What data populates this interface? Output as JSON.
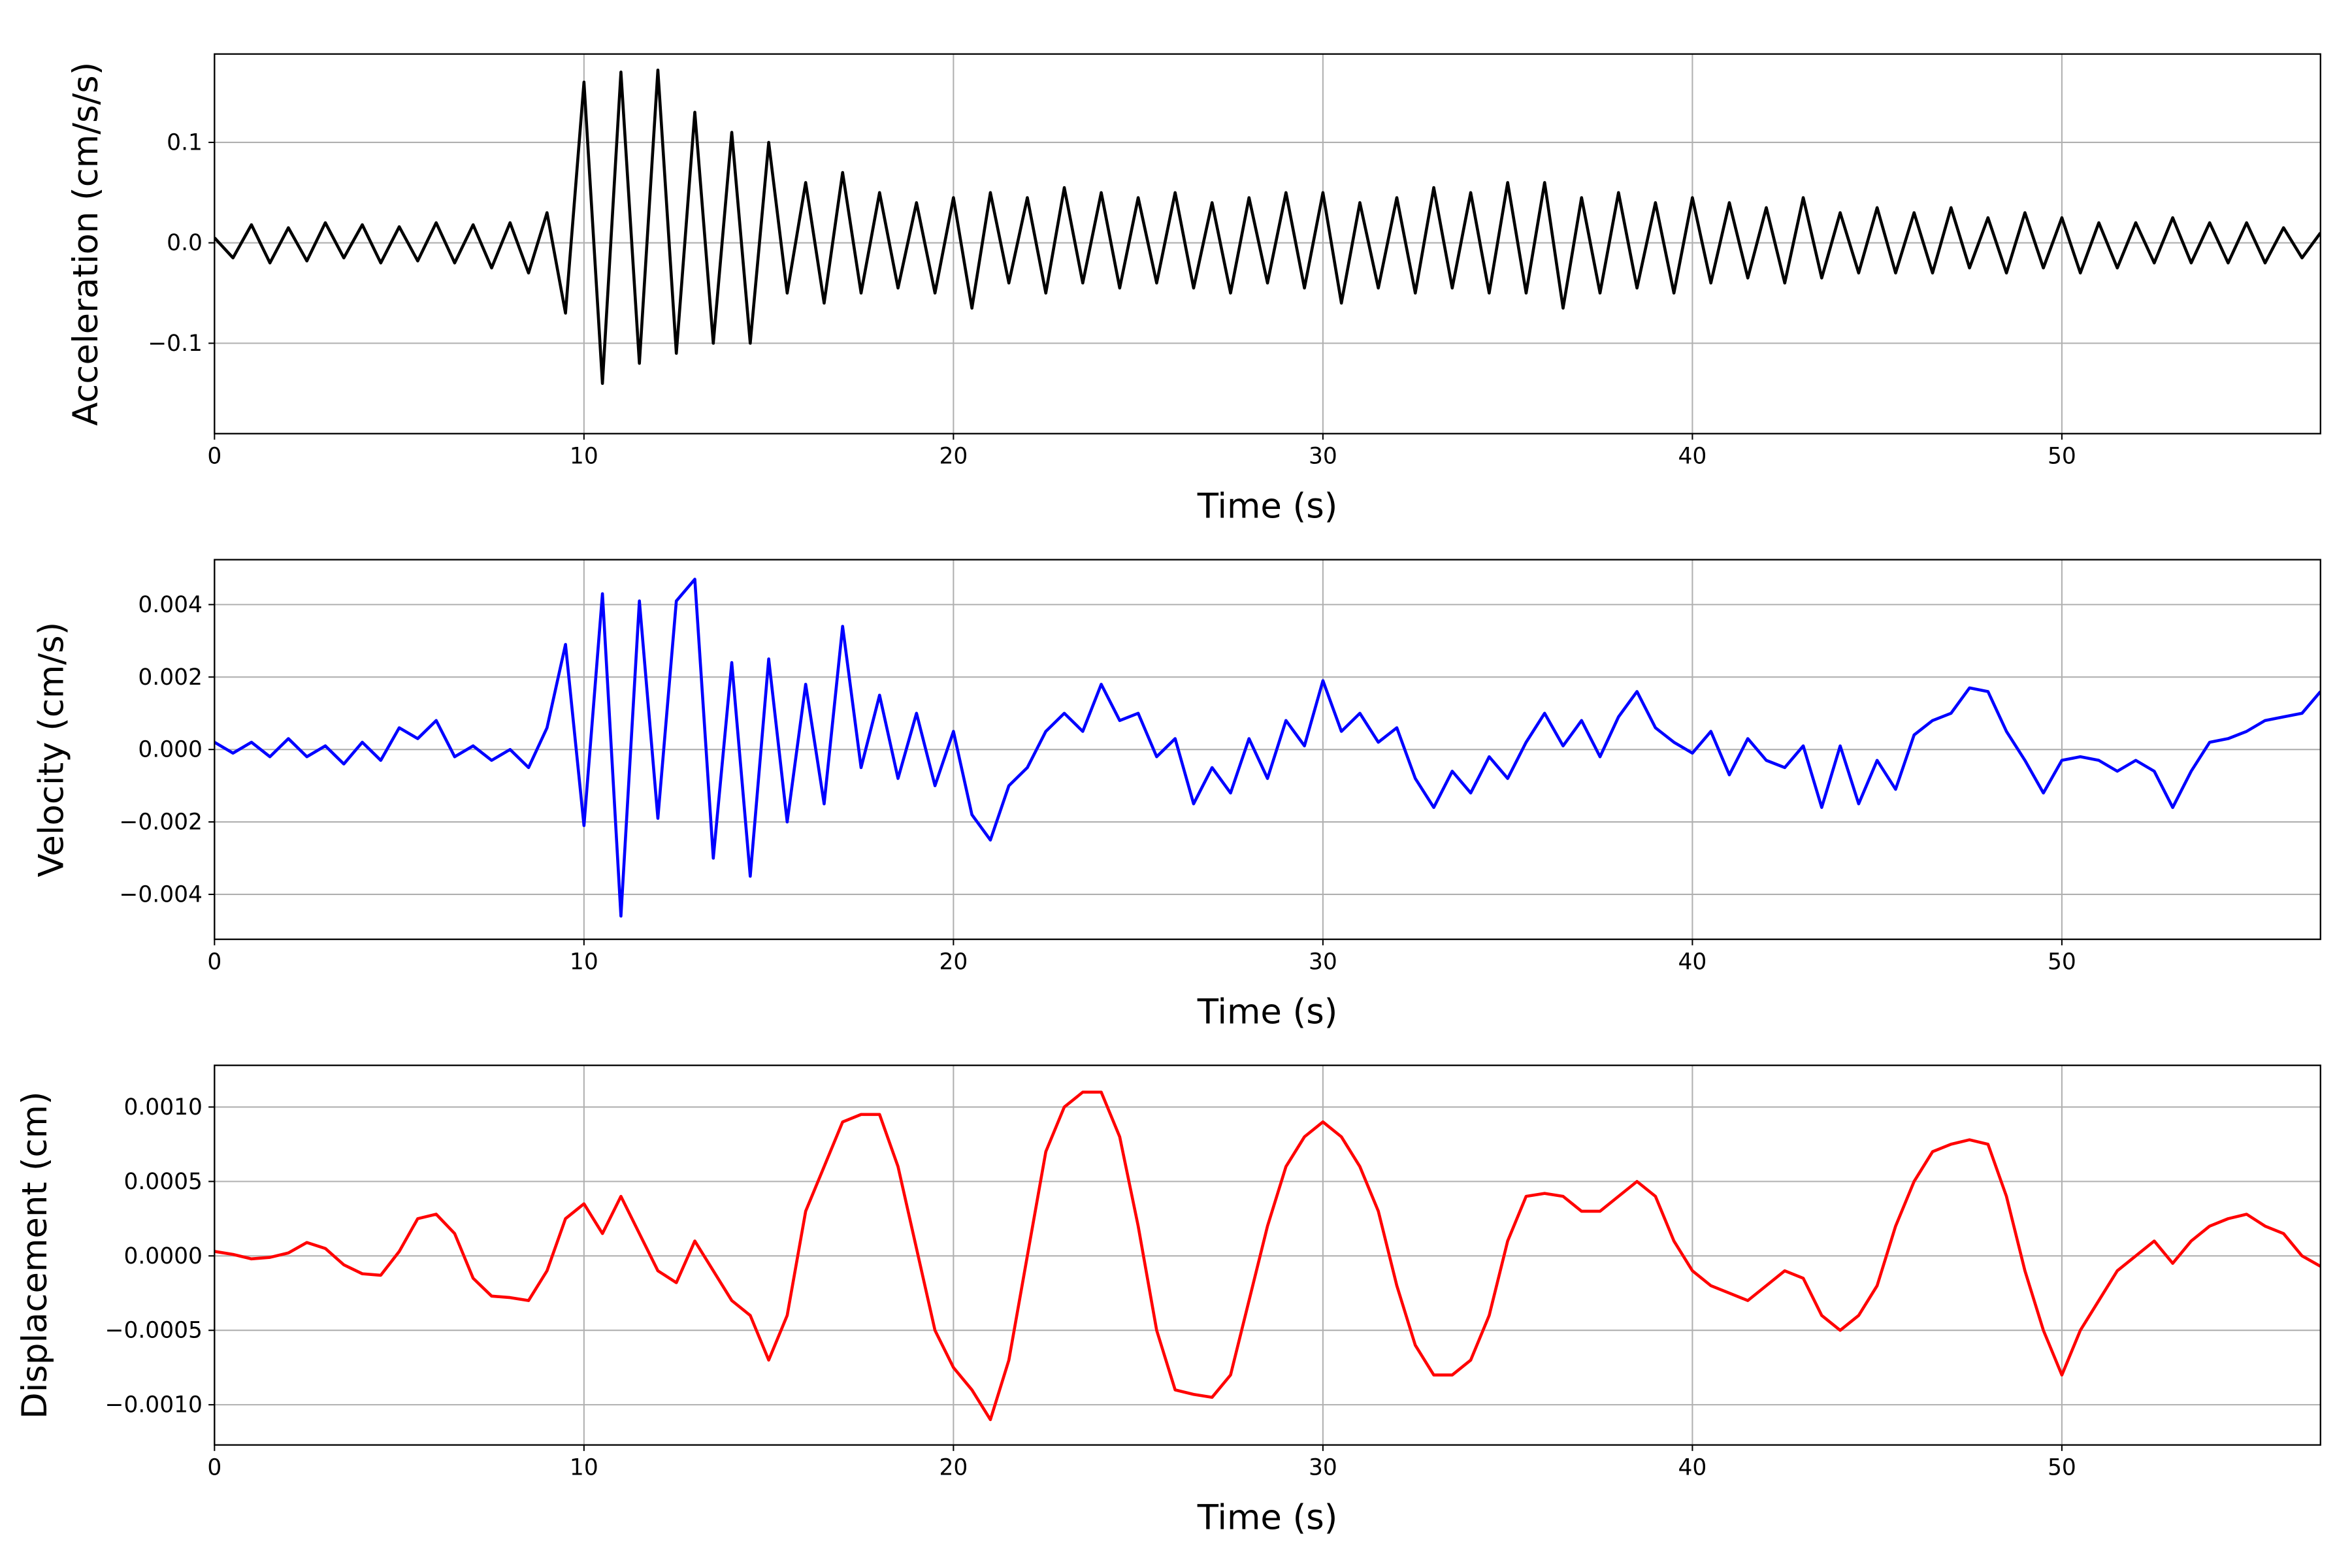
{
  "chart_data": [
    {
      "type": "line",
      "ylabel": "Acceleration (cm/s/s)",
      "xlabel": "Time (s)",
      "color": "#000000",
      "grid": true,
      "xlim": [
        0,
        57
      ],
      "xticks": [
        0,
        10,
        20,
        30,
        40,
        50
      ],
      "ylim": [
        -0.19,
        0.188
      ],
      "yticks": [
        {
          "value": -0.1,
          "label": "−0.1"
        },
        {
          "value": 0,
          "label": "0.0"
        },
        {
          "value": 0.1,
          "label": "0.1"
        }
      ],
      "x": [
        0,
        0.5,
        1,
        1.5,
        2,
        2.5,
        3,
        3.5,
        4,
        4.5,
        5,
        5.5,
        6,
        6.5,
        7,
        7.5,
        8,
        8.5,
        9,
        9.5,
        10,
        10.5,
        11,
        11.5,
        12,
        12.5,
        13,
        13.5,
        14,
        14.5,
        15,
        15.5,
        16,
        16.5,
        17,
        17.5,
        18,
        18.5,
        19,
        19.5,
        20,
        20.5,
        21,
        21.5,
        22,
        22.5,
        23,
        23.5,
        24,
        24.5,
        25,
        25.5,
        26,
        26.5,
        27,
        27.5,
        28,
        28.5,
        29,
        29.5,
        30,
        30.5,
        31,
        31.5,
        32,
        32.5,
        33,
        33.5,
        34,
        34.5,
        35,
        35.5,
        36,
        36.5,
        37,
        37.5,
        38,
        38.5,
        39,
        39.5,
        40,
        40.5,
        41,
        41.5,
        42,
        42.5,
        43,
        43.5,
        44,
        44.5,
        45,
        45.5,
        46,
        46.5,
        47,
        47.5,
        48,
        48.5,
        49,
        49.5,
        50,
        50.5,
        51,
        51.5,
        52,
        52.5,
        53,
        53.5,
        54,
        54.5,
        55,
        55.5,
        56,
        56.5,
        57
      ],
      "values": [
        0.005,
        -0.015,
        0.018,
        -0.02,
        0.015,
        -0.018,
        0.02,
        -0.015,
        0.018,
        -0.02,
        0.016,
        -0.018,
        0.02,
        -0.02,
        0.018,
        -0.025,
        0.02,
        -0.03,
        0.03,
        -0.07,
        0.16,
        -0.14,
        0.17,
        -0.12,
        0.172,
        -0.11,
        0.13,
        -0.1,
        0.11,
        -0.1,
        0.1,
        -0.05,
        0.06,
        -0.06,
        0.07,
        -0.05,
        0.05,
        -0.045,
        0.04,
        -0.05,
        0.045,
        -0.065,
        0.05,
        -0.04,
        0.045,
        -0.05,
        0.055,
        -0.04,
        0.05,
        -0.045,
        0.045,
        -0.04,
        0.05,
        -0.045,
        0.04,
        -0.05,
        0.045,
        -0.04,
        0.05,
        -0.045,
        0.05,
        -0.06,
        0.04,
        -0.045,
        0.045,
        -0.05,
        0.055,
        -0.045,
        0.05,
        -0.05,
        0.06,
        -0.05,
        0.06,
        -0.065,
        0.045,
        -0.05,
        0.05,
        -0.045,
        0.04,
        -0.05,
        0.045,
        -0.04,
        0.04,
        -0.035,
        0.035,
        -0.04,
        0.045,
        -0.035,
        0.03,
        -0.03,
        0.035,
        -0.03,
        0.03,
        -0.03,
        0.035,
        -0.025,
        0.025,
        -0.03,
        0.03,
        -0.025,
        0.025,
        -0.03,
        0.02,
        -0.025,
        0.02,
        -0.02,
        0.025,
        -0.02,
        0.02,
        -0.02,
        0.02,
        -0.02,
        0.015,
        -0.015,
        0.01
      ]
    },
    {
      "type": "line",
      "ylabel": "Velocity (cm/s)",
      "xlabel": "Time (s)",
      "color": "#0000ff",
      "grid": true,
      "xlim": [
        0,
        57
      ],
      "xticks": [
        0,
        10,
        20,
        30,
        40,
        50
      ],
      "ylim": [
        -0.00524,
        0.00524
      ],
      "yticks": [
        {
          "value": -0.004,
          "label": "−0.004"
        },
        {
          "value": -0.002,
          "label": "−0.002"
        },
        {
          "value": 0,
          "label": "0.000"
        },
        {
          "value": 0.002,
          "label": "0.002"
        },
        {
          "value": 0.004,
          "label": "0.004"
        }
      ],
      "x": [
        0,
        0.5,
        1,
        1.5,
        2,
        2.5,
        3,
        3.5,
        4,
        4.5,
        5,
        5.5,
        6,
        6.5,
        7,
        7.5,
        8,
        8.5,
        9,
        9.5,
        10,
        10.5,
        11,
        11.5,
        12,
        12.5,
        13,
        13.5,
        14,
        14.5,
        15,
        15.5,
        16,
        16.5,
        17,
        17.5,
        18,
        18.5,
        19,
        19.5,
        20,
        20.5,
        21,
        21.5,
        22,
        22.5,
        23,
        23.5,
        24,
        24.5,
        25,
        25.5,
        26,
        26.5,
        27,
        27.5,
        28,
        28.5,
        29,
        29.5,
        30,
        30.5,
        31,
        31.5,
        32,
        32.5,
        33,
        33.5,
        34,
        34.5,
        35,
        35.5,
        36,
        36.5,
        37,
        37.5,
        38,
        38.5,
        39,
        39.5,
        40,
        40.5,
        41,
        41.5,
        42,
        42.5,
        43,
        43.5,
        44,
        44.5,
        45,
        45.5,
        46,
        46.5,
        47,
        47.5,
        48,
        48.5,
        49,
        49.5,
        50,
        50.5,
        51,
        51.5,
        52,
        52.5,
        53,
        53.5,
        54,
        54.5,
        55,
        55.5,
        56,
        56.5,
        57
      ],
      "values": [
        0.0002,
        -0.0001,
        0.0002,
        -0.0002,
        0.0003,
        -0.0002,
        0.0001,
        -0.0004,
        0.0002,
        -0.0003,
        0.0006,
        0.0003,
        0.0008,
        -0.0002,
        0.0001,
        -0.0003,
        0.0,
        -0.0005,
        0.0006,
        0.0029,
        -0.0021,
        0.0043,
        -0.0046,
        0.0041,
        -0.0019,
        0.0041,
        0.0047,
        -0.003,
        0.0024,
        -0.0035,
        0.0025,
        -0.002,
        0.0018,
        -0.0015,
        0.0034,
        -0.0005,
        0.0015,
        -0.0008,
        0.001,
        -0.001,
        0.0005,
        -0.0018,
        -0.0025,
        -0.001,
        -0.0005,
        0.0005,
        0.001,
        0.0005,
        0.0018,
        0.0008,
        0.001,
        -0.0002,
        0.0003,
        -0.0015,
        -0.0005,
        -0.0012,
        0.0003,
        -0.0008,
        0.0008,
        0.0001,
        0.0019,
        0.0005,
        0.001,
        0.0002,
        0.0006,
        -0.0008,
        -0.0016,
        -0.0006,
        -0.0012,
        -0.0002,
        -0.0008,
        0.0002,
        0.001,
        0.0001,
        0.0008,
        -0.0002,
        0.0009,
        0.0016,
        0.0006,
        0.0002,
        -0.0001,
        0.0005,
        -0.0007,
        0.0003,
        -0.0003,
        -0.0005,
        0.0001,
        -0.0016,
        0.0001,
        -0.0015,
        -0.0003,
        -0.0011,
        0.0004,
        0.0008,
        0.001,
        0.0017,
        0.0016,
        0.0005,
        -0.0003,
        -0.0012,
        -0.0003,
        -0.0002,
        -0.0003,
        -0.0006,
        -0.0003,
        -0.0006,
        -0.0016,
        -0.0006,
        0.0002,
        0.0003,
        0.0005,
        0.0008,
        0.0009,
        0.001,
        0.0016
      ]
    },
    {
      "type": "line",
      "ylabel": "Displacement (cm)",
      "xlabel": "Time (s)",
      "color": "#ff0000",
      "grid": true,
      "xlim": [
        0,
        57
      ],
      "xticks": [
        0,
        10,
        20,
        30,
        40,
        50
      ],
      "ylim": [
        -0.00127,
        0.00128
      ],
      "yticks": [
        {
          "value": -0.001,
          "label": "−0.0010"
        },
        {
          "value": -0.0005,
          "label": "−0.0005"
        },
        {
          "value": 0,
          "label": "0.0000"
        },
        {
          "value": 0.0005,
          "label": "0.0005"
        },
        {
          "value": 0.001,
          "label": "0.0010"
        }
      ],
      "x": [
        0,
        0.5,
        1,
        1.5,
        2,
        2.5,
        3,
        3.5,
        4,
        4.5,
        5,
        5.5,
        6,
        6.5,
        7,
        7.5,
        8,
        8.5,
        9,
        9.5,
        10,
        10.5,
        11,
        11.5,
        12,
        12.5,
        13,
        13.5,
        14,
        14.5,
        15,
        15.5,
        16,
        16.5,
        17,
        17.5,
        18,
        18.5,
        19,
        19.5,
        20,
        20.5,
        21,
        21.5,
        22,
        22.5,
        23,
        23.5,
        24,
        24.5,
        25,
        25.5,
        26,
        26.5,
        27,
        27.5,
        28,
        28.5,
        29,
        29.5,
        30,
        30.5,
        31,
        31.5,
        32,
        32.5,
        33,
        33.5,
        34,
        34.5,
        35,
        35.5,
        36,
        36.5,
        37,
        37.5,
        38,
        38.5,
        39,
        39.5,
        40,
        40.5,
        41,
        41.5,
        42,
        42.5,
        43,
        43.5,
        44,
        44.5,
        45,
        45.5,
        46,
        46.5,
        47,
        47.5,
        48,
        48.5,
        49,
        49.5,
        50,
        50.5,
        51,
        51.5,
        52,
        52.5,
        53,
        53.5,
        54,
        54.5,
        55,
        55.5,
        56,
        56.5,
        57
      ],
      "values": [
        3e-05,
        1e-05,
        -2e-05,
        -1e-05,
        2e-05,
        9e-05,
        5e-05,
        -6e-05,
        -0.00012,
        -0.00013,
        3e-05,
        0.00025,
        0.00028,
        0.00015,
        -0.00015,
        -0.00027,
        -0.00028,
        -0.0003,
        -0.0001,
        0.00025,
        0.00035,
        0.00015,
        0.0004,
        0.00015,
        -0.0001,
        -0.00018,
        0.0001,
        -0.0001,
        -0.0003,
        -0.0004,
        -0.0007,
        -0.0004,
        0.0003,
        0.0006,
        0.0009,
        0.00095,
        0.00095,
        0.0006,
        5e-05,
        -0.0005,
        -0.00075,
        -0.0009,
        -0.0011,
        -0.0007,
        0.0,
        0.0007,
        0.001,
        0.0011,
        0.0011,
        0.0008,
        0.0002,
        -0.0005,
        -0.0009,
        -0.00093,
        -0.00095,
        -0.0008,
        -0.0003,
        0.0002,
        0.0006,
        0.0008,
        0.0009,
        0.0008,
        0.0006,
        0.0003,
        -0.0002,
        -0.0006,
        -0.0008,
        -0.0008,
        -0.0007,
        -0.0004,
        0.0001,
        0.0004,
        0.00042,
        0.0004,
        0.0003,
        0.0003,
        0.0004,
        0.0005,
        0.0004,
        0.0001,
        -0.0001,
        -0.0002,
        -0.00025,
        -0.0003,
        -0.0002,
        -0.0001,
        -0.00015,
        -0.0004,
        -0.0005,
        -0.0004,
        -0.0002,
        0.0002,
        0.0005,
        0.0007,
        0.00075,
        0.00078,
        0.00075,
        0.0004,
        -0.0001,
        -0.0005,
        -0.0008,
        -0.0005,
        -0.0003,
        -0.0001,
        0.0,
        0.0001,
        -5e-05,
        0.0001,
        0.0002,
        0.00025,
        0.00028,
        0.0002,
        0.00015,
        0.0,
        -7e-05
      ]
    }
  ]
}
